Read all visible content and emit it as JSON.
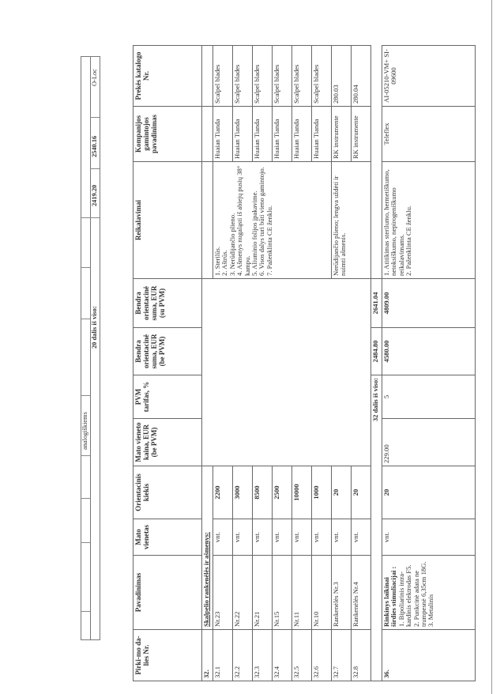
{
  "summary_strip": {
    "row1_text": "analogiškiems",
    "part_total_label": "20 dalis iš viso:",
    "part_total_ex_vat": "2419.20",
    "part_total_inc_vat": "2540.16",
    "catalog_tail": "O-Loc"
  },
  "table": {
    "headers": {
      "lot": "Pirki-mo da-lies Nr.",
      "name": "Pavadinimas",
      "unit": "Mato vienetas",
      "qty": "Orientacinis kiekis",
      "unit_price": "Mato vieneto kaina, EUR (be PVM)",
      "vat": "PVM tarifas, %",
      "total_ex": "Bendra orientacinė suma, EUR (be PVM)",
      "total_inc": "Bendra orientacinė suma, EUR (su PVM)",
      "requirements": "Reikalavimai",
      "manufacturer": "Kompanijos gamintojos pavadinimas",
      "catalog": "Prekės katalogo Nr."
    },
    "section32": {
      "lot": "32.",
      "title": "Skalpelio rankenėlės ir ašmenys:",
      "requirements_blades": [
        "1. Sterilūs.",
        "2. Aštrūs.",
        "3. Nerūdijančio plieno.",
        "4. Ašmenys nugaląsti iš abiejų pusių 38° kampu.",
        "5. Aliuminio folijos įpakavime.",
        "6. Visos dalys turi būti vieno gamintojo.",
        "7. Paženklinta CE ženklu."
      ],
      "requirements_handles": "Nerūdijančio plieno; lengva uždėti ir nuimti ašmenis.",
      "rows": [
        {
          "lot": "32.1",
          "name": "Nr.23",
          "unit": "vnt.",
          "qty": "2200",
          "manufacturer": "Huaian Tianda",
          "catalog": "Scalpel blades"
        },
        {
          "lot": "32.2",
          "name": "Nr.22",
          "unit": "vnt.",
          "qty": "3000",
          "manufacturer": "Huaian Tianda",
          "catalog": "Scalpel blades"
        },
        {
          "lot": "32.3",
          "name": "Nr.21",
          "unit": "vnt.",
          "qty": "8500",
          "manufacturer": "Huaian Tianda",
          "catalog": "Scalpel blades"
        },
        {
          "lot": "32.4",
          "name": "Nr.15",
          "unit": "vnt.",
          "qty": "2500",
          "manufacturer": "Huaian Tianda",
          "catalog": "Scalpel blades"
        },
        {
          "lot": "32.5",
          "name": "Nr.11",
          "unit": "vnt.",
          "qty": "10000",
          "manufacturer": "Huaian Tianda",
          "catalog": "Scalpel blades"
        },
        {
          "lot": "32.6",
          "name": "Nr.10",
          "unit": "vnt.",
          "qty": "1000",
          "manufacturer": "Huaian Tianda",
          "catalog": "Scalpel blades"
        },
        {
          "lot": "32.7",
          "name": "Rankenėlės Nr.3",
          "unit": "vnt.",
          "qty": "20",
          "manufacturer": "RK instrumente",
          "catalog": "280.03"
        },
        {
          "lot": "32.8",
          "name": "Rankenėlės Nr.4",
          "unit": "vnt.",
          "qty": "20",
          "manufacturer": "RK instrumente",
          "catalog": "280.04"
        }
      ],
      "subtotal_label": "32 dalis iš viso:",
      "subtotal_ex": "2484.80",
      "subtotal_inc": "2641.04"
    },
    "row36": {
      "lot": "36.",
      "name_title": "Rinkinys laikinai širdies stimuliacijai :",
      "name_items": [
        "1. Bipoliarinis intra-kardinis elektrodas F5.",
        "2. Punkcinė adata ne trumpesnė 6,35cm 18G.",
        "3. Metalinis"
      ],
      "unit": "vnt.",
      "qty": "20",
      "unit_price": "229.00",
      "vat": "5",
      "total_ex": "4580.00",
      "total_inc": "4809.00",
      "requirements": [
        "1. Atitikimas sterilumo, hermetiškumo, netoksiškumo, nepirogeniškumo reikalavimams.",
        "2. Paženklinta CE ženklu."
      ],
      "manufacturer": "Teleflex",
      "catalog": "AI-05210-VM+ SI-09600"
    }
  }
}
